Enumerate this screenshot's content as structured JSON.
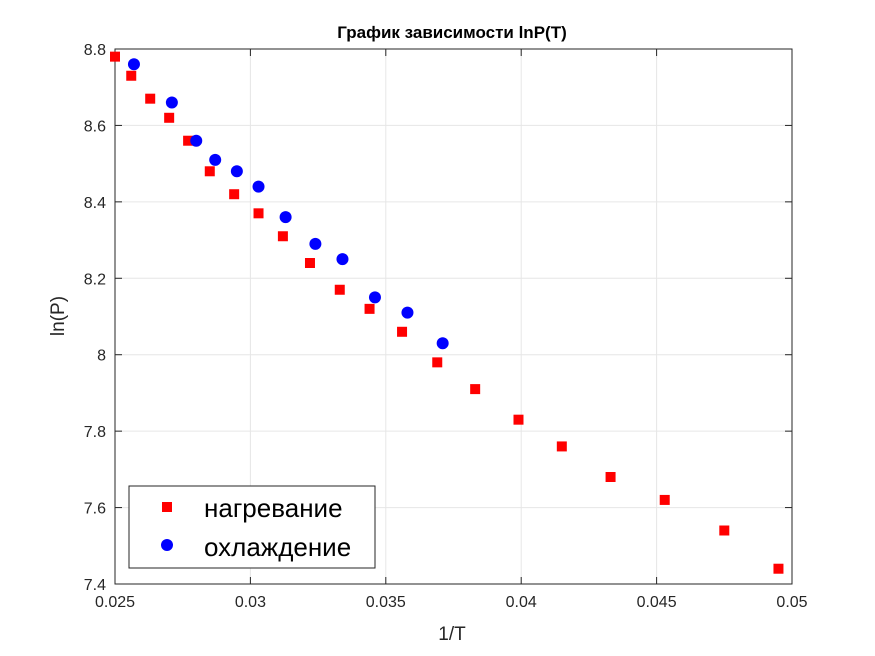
{
  "chart_data": {
    "type": "scatter",
    "title": "График зависимости lnP(T)",
    "xlabel": "1/T",
    "ylabel": "ln(P)",
    "xlim": [
      0.025,
      0.05
    ],
    "ylim": [
      7.4,
      8.8
    ],
    "xticks": [
      0.025,
      0.03,
      0.035,
      0.04,
      0.045,
      0.05
    ],
    "xtick_labels": [
      "0.025",
      "0.03",
      "0.035",
      "0.04",
      "0.045",
      "0.05"
    ],
    "yticks": [
      7.4,
      7.6,
      7.8,
      8.0,
      8.2,
      8.4,
      8.6,
      8.8
    ],
    "ytick_labels": [
      "7.4",
      "7.6",
      "7.8",
      "8",
      "8.2",
      "8.4",
      "8.6",
      "8.8"
    ],
    "grid": true,
    "legend_position": "bottom-left",
    "series": [
      {
        "name": "нагревание",
        "marker": "square",
        "color": "#ff0000",
        "x": [
          0.025,
          0.0256,
          0.0263,
          0.027,
          0.0277,
          0.0285,
          0.0294,
          0.0303,
          0.0312,
          0.0322,
          0.0333,
          0.0344,
          0.0356,
          0.0369,
          0.0383,
          0.0399,
          0.0415,
          0.0433,
          0.0453,
          0.0475,
          0.0495
        ],
        "y": [
          8.78,
          8.73,
          8.67,
          8.62,
          8.56,
          8.48,
          8.42,
          8.37,
          8.31,
          8.24,
          8.17,
          8.12,
          8.06,
          7.98,
          7.91,
          7.83,
          7.76,
          7.68,
          7.62,
          7.54,
          7.44
        ]
      },
      {
        "name": "охлаждение",
        "marker": "circle",
        "color": "#0000ff",
        "x": [
          0.0257,
          0.0271,
          0.028,
          0.0287,
          0.0295,
          0.0303,
          0.0313,
          0.0324,
          0.0334,
          0.0346,
          0.0358,
          0.0371
        ],
        "y": [
          8.76,
          8.66,
          8.56,
          8.51,
          8.48,
          8.44,
          8.36,
          8.29,
          8.25,
          8.15,
          8.11,
          8.03
        ]
      }
    ]
  }
}
